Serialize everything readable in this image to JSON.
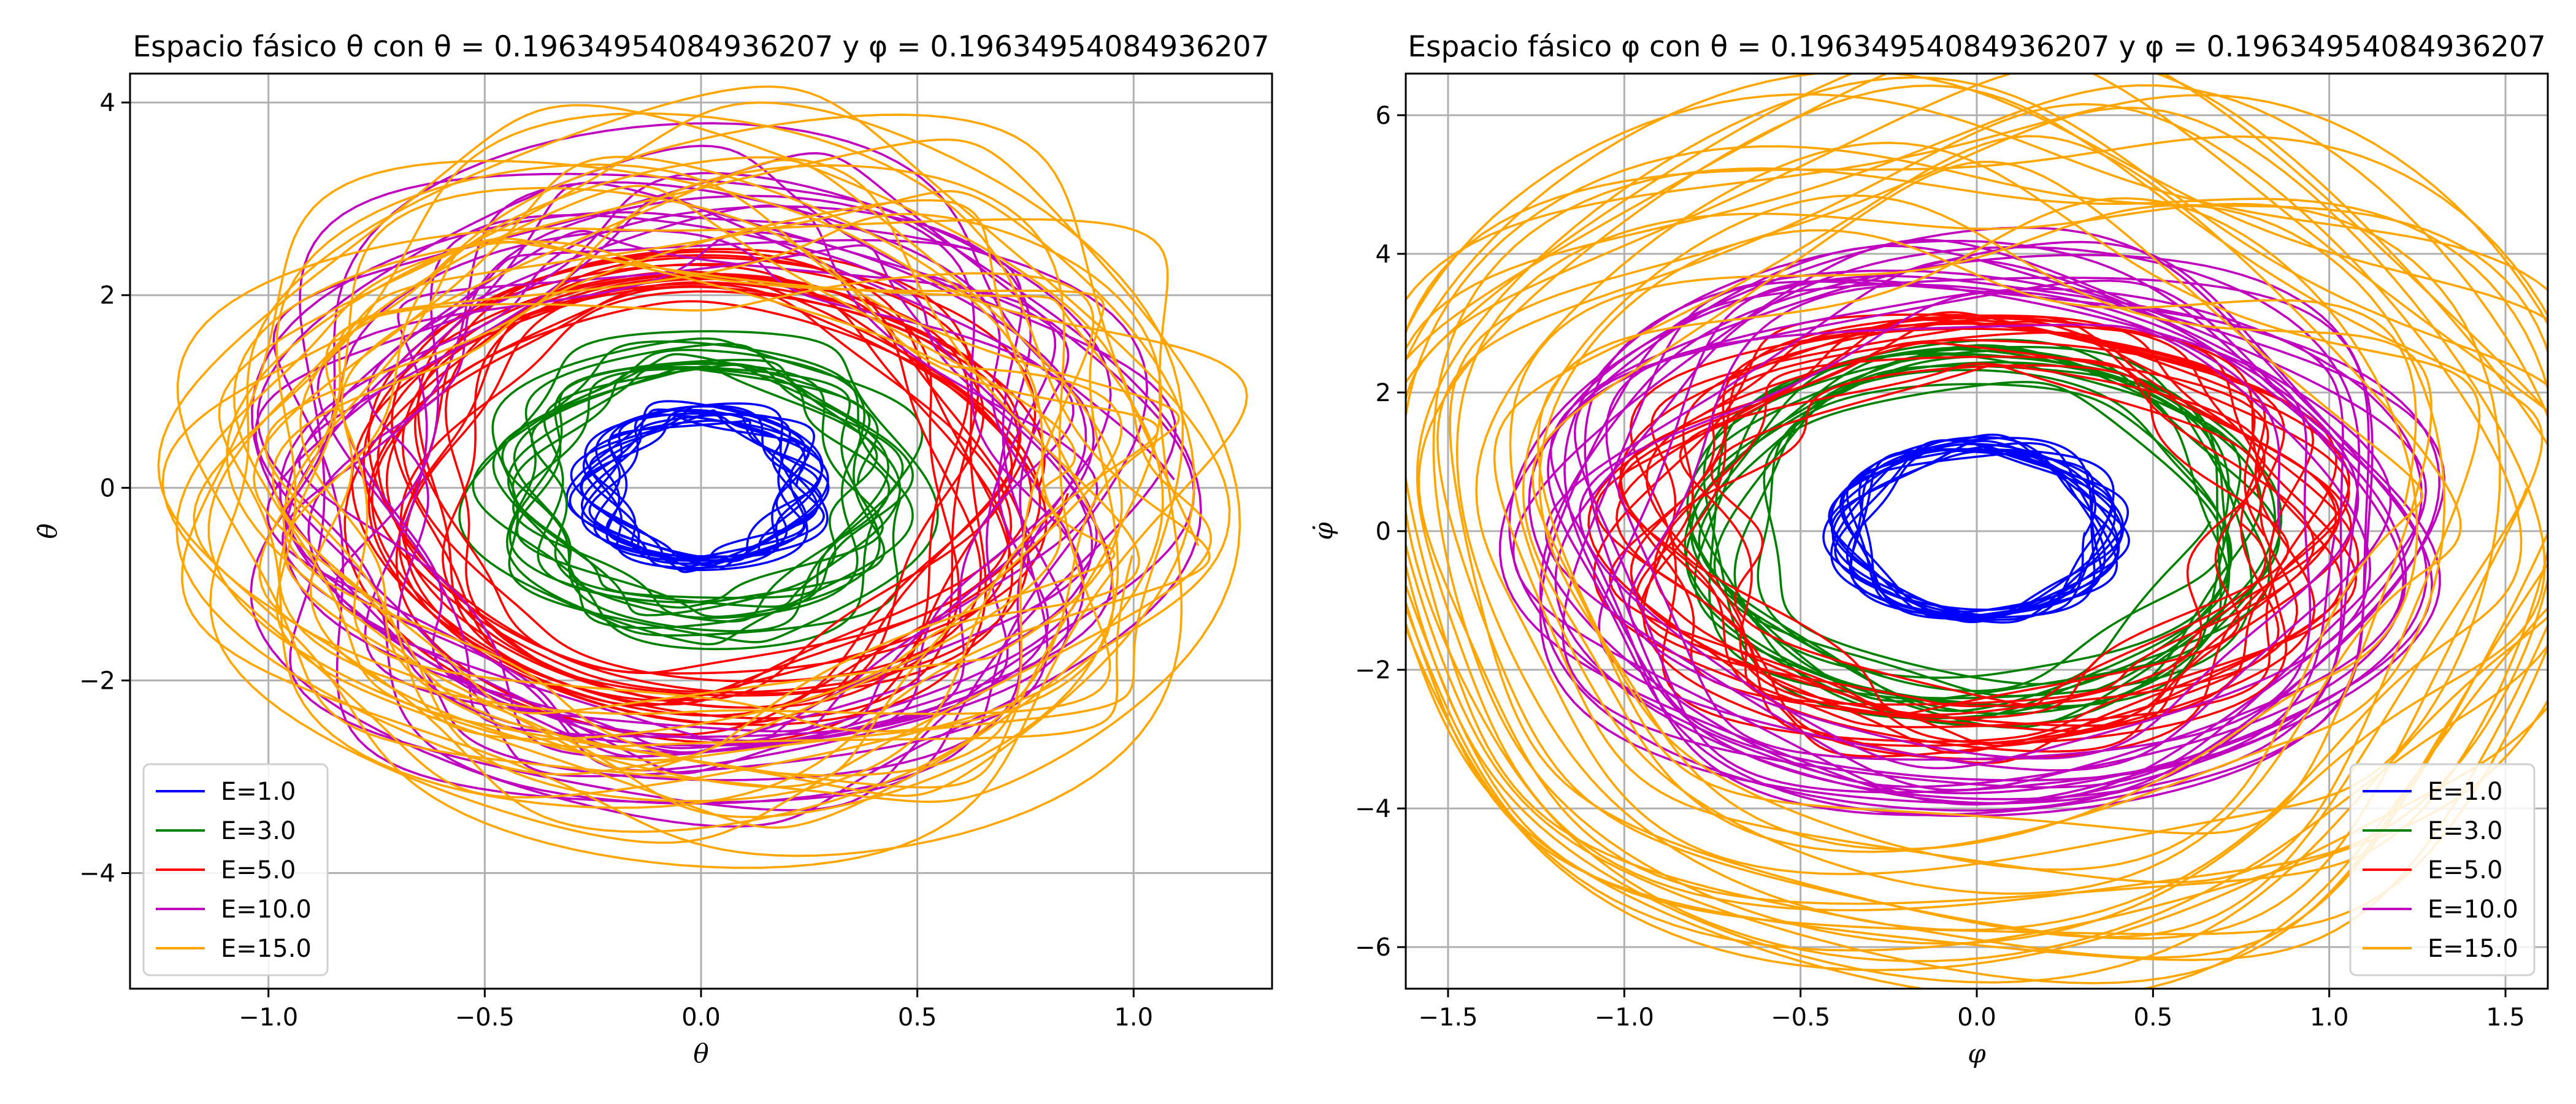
{
  "chart_data": [
    {
      "type": "line",
      "title": "Espacio fásico θ con θ = 0.19634954084936207 y φ = 0.19634954084936207",
      "xlabel": "θ",
      "ylabel": "θ̇",
      "xlim": [
        -1.32,
        1.32
      ],
      "ylim": [
        -5.2,
        4.3
      ],
      "xticks": [
        -1.0,
        -0.5,
        0.0,
        0.5,
        1.0
      ],
      "xtick_labels": [
        "−1.0",
        "−0.5",
        "0.0",
        "0.5",
        "1.0"
      ],
      "yticks": [
        -4,
        -2,
        0,
        2,
        4
      ],
      "ytick_labels": [
        "−4",
        "−2",
        "0",
        "2",
        "4"
      ],
      "grid": true,
      "legend_position": "lower-left",
      "series": [
        {
          "name": "E=1.0",
          "color": "#0000ff",
          "amp_x": 0.26,
          "amp_y": 0.85,
          "chaos_x": 0.05,
          "chaos_y": 0.08,
          "loops": 14
        },
        {
          "name": "E=3.0",
          "color": "#008000",
          "amp_x": 0.47,
          "amp_y": 1.55,
          "chaos_x": 0.06,
          "chaos_y": 0.15,
          "loops": 14
        },
        {
          "name": "E=5.0",
          "color": "#ff0000",
          "amp_x": 0.64,
          "amp_y": 2.1,
          "chaos_x": 0.1,
          "chaos_y": 0.25,
          "loops": 18
        },
        {
          "name": "E=10.0",
          "color": "#bf00bf",
          "amp_x": 0.85,
          "amp_y": 2.85,
          "chaos_x": 0.14,
          "chaos_y": 0.35,
          "loops": 18
        },
        {
          "name": "E=15.0",
          "color": "#ffa500",
          "amp_x": 1.12,
          "amp_y": 3.3,
          "chaos_x": 0.1,
          "chaos_y": 0.9,
          "loops": 22
        }
      ]
    },
    {
      "type": "line",
      "title": "Espacio fásico φ con θ = 0.19634954084936207 y φ = 0.19634954084936207",
      "xlabel": "φ",
      "ylabel": "φ̇",
      "xlim": [
        -1.62,
        1.62
      ],
      "ylim": [
        -6.6,
        6.6
      ],
      "xticks": [
        -1.5,
        -1.0,
        -0.5,
        0.0,
        0.5,
        1.0,
        1.5
      ],
      "xtick_labels": [
        "−1.5",
        "−1.0",
        "−0.5",
        "0.0",
        "0.5",
        "1.0",
        "1.5"
      ],
      "yticks": [
        -6,
        -4,
        -2,
        0,
        2,
        4,
        6
      ],
      "ytick_labels": [
        "−6",
        "−4",
        "−2",
        "0",
        "2",
        "4",
        "6"
      ],
      "grid": true,
      "legend_position": "lower-right",
      "series": [
        {
          "name": "E=1.0",
          "color": "#0000ff",
          "amp_x": 0.36,
          "amp_y": 1.2,
          "chaos_x": 0.05,
          "chaos_y": 0.12,
          "loops": 14
        },
        {
          "name": "E=3.0",
          "color": "#008000",
          "amp_x": 0.66,
          "amp_y": 2.2,
          "chaos_x": 0.06,
          "chaos_y": 0.2,
          "loops": 14
        },
        {
          "name": "E=5.0",
          "color": "#ff0000",
          "amp_x": 0.9,
          "amp_y": 2.85,
          "chaos_x": 0.12,
          "chaos_y": 0.3,
          "loops": 18
        },
        {
          "name": "E=10.0",
          "color": "#bf00bf",
          "amp_x": 1.2,
          "amp_y": 3.9,
          "chaos_x": 0.12,
          "chaos_y": 0.4,
          "loops": 18
        },
        {
          "name": "E=15.0",
          "color": "#ffa500",
          "amp_x": 1.44,
          "amp_y": 5.2,
          "chaos_x": 0.08,
          "chaos_y": 1.0,
          "loops": 22
        }
      ]
    }
  ]
}
